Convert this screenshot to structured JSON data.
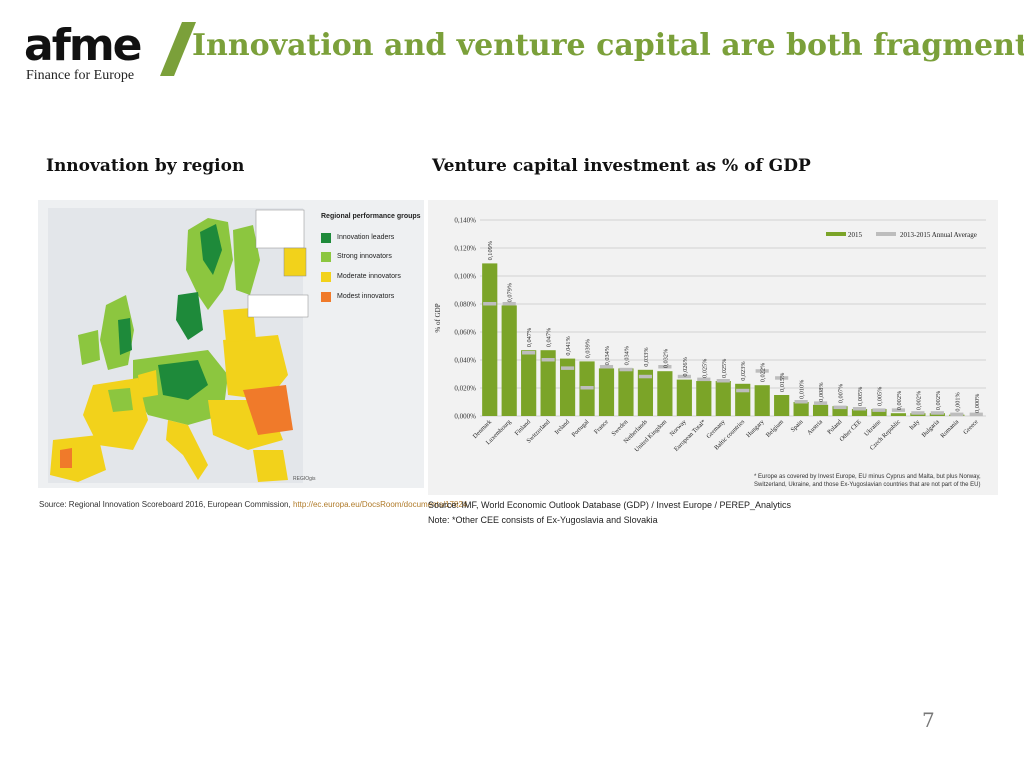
{
  "logo": {
    "word": "afme",
    "tagline": "Finance for Europe"
  },
  "title": "Innovation and venture capital are both fragmented",
  "left_section": {
    "heading": "Innovation by region",
    "legend_title": "Regional performance groups",
    "legend_items": [
      {
        "label": "Innovation leaders",
        "color": "#1e8a3a"
      },
      {
        "label": "Strong innovators",
        "color": "#8cc63f"
      },
      {
        "label": "Moderate innovators",
        "color": "#f2d21b"
      },
      {
        "label": "Modest innovators",
        "color": "#f07a2a"
      }
    ],
    "source_prefix": "Source: Regional Innovation Scoreboard 2016, European Commission,",
    "source_link": "http://ec.europa.eu/DocsRoom/documents/17824"
  },
  "right_section": {
    "heading": "Venture capital investment as % of GDP",
    "footnote_line1": "* Europe as covered by Invest Europe, EU minus Cyprus and Malta, but plus Norway,",
    "footnote_line2": "Switzerland, Ukraine, and those Ex-Yugoslavian countries that are not part of the EU)",
    "source_line1": "Source: IMF, World Economic Outlook Database (GDP) / Invest Europe / PEREP_Analytics",
    "source_line2": "Note: *Other CEE consists of Ex-Yugoslavia and Slovakia"
  },
  "page_number": "7",
  "chart_data": {
    "type": "bar",
    "ylabel": "% of GDP",
    "ylim": [
      0,
      0.14
    ],
    "yticks": [
      "0,000%",
      "0,020%",
      "0,040%",
      "0,060%",
      "0,080%",
      "0,100%",
      "0,120%",
      "0,140%"
    ],
    "legend_position": "top-right",
    "categories": [
      "Denmark",
      "Luxembourg",
      "Finland",
      "Switzerland",
      "Ireland",
      "Portugal",
      "France",
      "Sweden",
      "Netherlands",
      "United Kingdom",
      "Norway",
      "European Total*",
      "Germany",
      "Baltic countries",
      "Hungary",
      "Belgium",
      "Spain",
      "Austria",
      "Poland",
      "Other CEE",
      "Ukraine",
      "Czech Republic",
      "Italy",
      "Bulgaria",
      "Romania",
      "Greece"
    ],
    "series": [
      {
        "name": "2015",
        "color": "#7ba428",
        "values": [
          0.109,
          0.079,
          0.047,
          0.047,
          0.041,
          0.039,
          0.034,
          0.034,
          0.033,
          0.032,
          0.026,
          0.025,
          0.025,
          0.023,
          0.022,
          0.015,
          0.01,
          0.008,
          0.007,
          0.005,
          0.005,
          0.002,
          0.002,
          0.002,
          0.001,
          0.0
        ],
        "labels": [
          "0,109%",
          "0,079%",
          "0,047%",
          "0,047%",
          "0,041%",
          "0,039%",
          "0,034%",
          "0,034%",
          "0,033%",
          "0,032%",
          "0,026%",
          "0,025%",
          "0,025%",
          "0,023%",
          "0,022%",
          "0,015%",
          "0,010%",
          "0,008%",
          "0,007%",
          "0,005%",
          "0,005%",
          "0,002%",
          "0,002%",
          "0,002%",
          "0,001%",
          "0,000%"
        ]
      },
      {
        "name": "2013-2015 Annual Average",
        "color": "#bdbdbd",
        "values": [
          0.08,
          0.08,
          0.045,
          0.04,
          0.034,
          0.02,
          0.035,
          0.033,
          0.028,
          0.035,
          0.028,
          0.026,
          0.025,
          0.018,
          0.032,
          0.027,
          0.01,
          0.009,
          0.006,
          0.005,
          0.004,
          0.004,
          0.002,
          0.002,
          0.001,
          0.001
        ]
      }
    ]
  }
}
